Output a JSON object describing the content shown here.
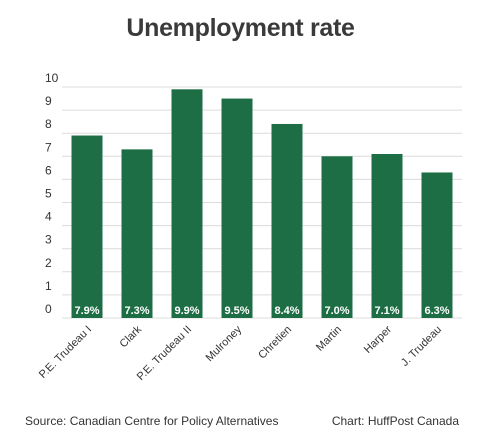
{
  "chart_data": {
    "type": "bar",
    "title": "Unemployment rate",
    "categories": [
      "P.E. Trudeau I",
      "Clark",
      "P.E. Trudeau II",
      "Mulroney",
      "Chretien",
      "Martin",
      "Harper",
      "J. Trudeau"
    ],
    "values": [
      7.9,
      7.3,
      9.9,
      9.5,
      8.4,
      7.0,
      7.1,
      6.3
    ],
    "data_labels": [
      "7.9%",
      "7.3%",
      "9.9%",
      "9.5%",
      "8.4%",
      "7.0%",
      "7.1%",
      "6.3%"
    ],
    "yticks": [
      "0",
      "1",
      "2",
      "3",
      "4",
      "5",
      "6",
      "7",
      "8",
      "9",
      "10"
    ],
    "ylim": [
      0,
      10
    ],
    "xlabel": "",
    "ylabel": "",
    "grid": true,
    "legend": "none"
  },
  "colors": {
    "bar": "#1d6e45",
    "grid": "#dcdcdc",
    "label_text": "#ffffff"
  },
  "footer": {
    "source": "Source: Canadian Centre for Policy Alternatives",
    "credit": "Chart: HuffPost Canada"
  }
}
